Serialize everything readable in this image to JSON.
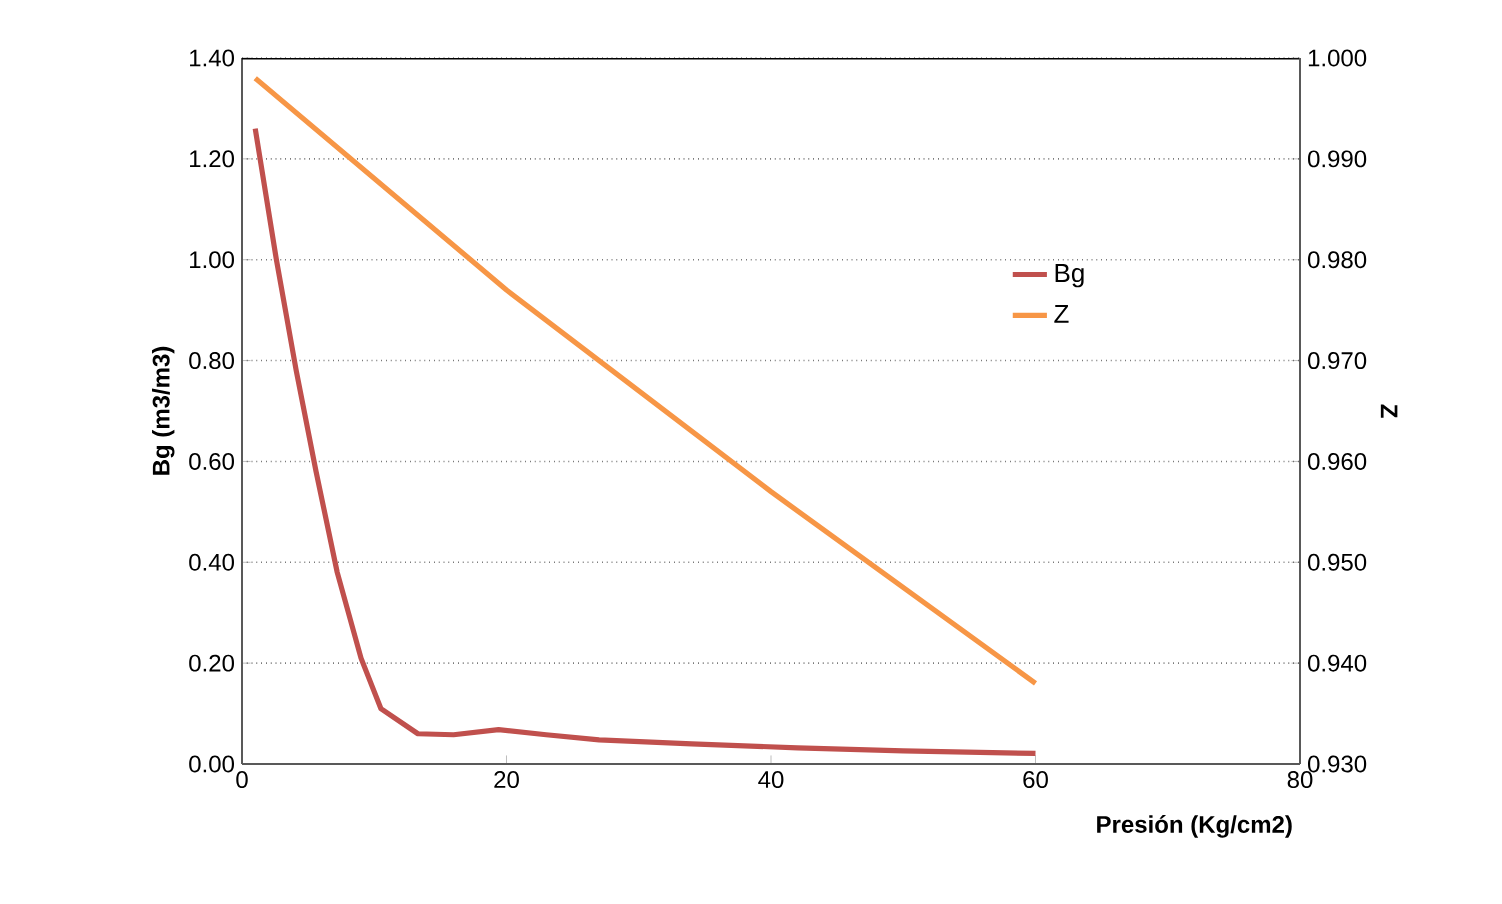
{
  "chart_data": {
    "type": "line",
    "xlabel": "Presión (Kg/cm2)",
    "ylabel": "Bg (m3/m3)",
    "y2label": "Z",
    "series": [
      {
        "name": "Bg",
        "color": "#c0504d",
        "x": [
          1,
          2.6,
          4.1,
          5.6,
          7.2,
          9,
          10.5,
          13.3,
          16,
          19.4,
          23,
          27,
          34,
          42,
          50,
          60
        ],
        "values": [
          1.26,
          1.0,
          0.78,
          0.58,
          0.38,
          0.21,
          0.11,
          0.06,
          0.058,
          0.068,
          0.058,
          0.048,
          0.04,
          0.032,
          0.026,
          0.021
        ]
      },
      {
        "name": "Z",
        "color": "#f79646",
        "axis": "y2",
        "x": [
          1,
          20,
          40,
          60
        ],
        "values": [
          0.998,
          0.977,
          0.957,
          0.938
        ]
      }
    ],
    "xlim": [
      0,
      80
    ],
    "xticks": [
      0,
      20,
      40,
      60,
      80
    ],
    "ylim": [
      0,
      1.4
    ],
    "yticks": [
      {
        "value": 0,
        "label": "0.00"
      },
      {
        "value": 0.2,
        "label": "0.20"
      },
      {
        "value": 0.4,
        "label": "0.40"
      },
      {
        "value": 0.6,
        "label": "0.60"
      },
      {
        "value": 0.8,
        "label": "0.80"
      },
      {
        "value": 1.0,
        "label": "1.00"
      },
      {
        "value": 1.2,
        "label": "1.20"
      },
      {
        "value": 1.4,
        "label": "1.40"
      }
    ],
    "y2lim": [
      0.93,
      1.0
    ],
    "y2ticks": [
      {
        "value": 0.93,
        "label": "0.930"
      },
      {
        "value": 0.94,
        "label": "0.940"
      },
      {
        "value": 0.95,
        "label": "0.950"
      },
      {
        "value": 0.96,
        "label": "0.960"
      },
      {
        "value": 0.97,
        "label": "0.970"
      },
      {
        "value": 0.98,
        "label": "0.980"
      },
      {
        "value": 0.99,
        "label": "0.990"
      },
      {
        "value": 1.0,
        "label": "1.000"
      }
    ],
    "grid": "y",
    "legend": "right",
    "marker": "none",
    "line_style": "solid"
  }
}
